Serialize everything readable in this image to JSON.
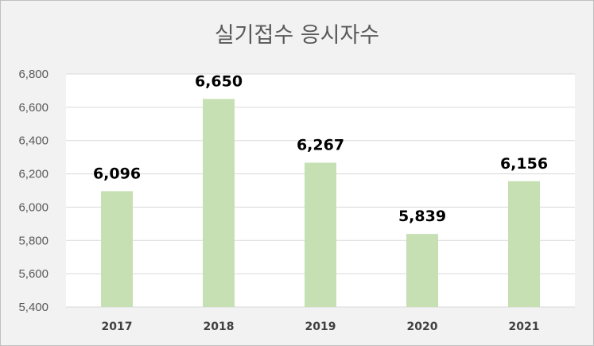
{
  "chart_data": {
    "type": "bar",
    "title": "실기접수 응시자수",
    "categories": [
      "2017",
      "2018",
      "2019",
      "2020",
      "2021"
    ],
    "values": [
      6096,
      6650,
      6267,
      5839,
      6156
    ],
    "data_labels": [
      "6,096",
      "6,650",
      "6,267",
      "5,839",
      "6,156"
    ],
    "ylim": [
      5400,
      6800
    ],
    "yticks": [
      5400,
      5600,
      5800,
      6000,
      6200,
      6400,
      6600,
      6800
    ],
    "ytick_labels": [
      "5,400",
      "5,600",
      "5,800",
      "6,000",
      "6,200",
      "6,400",
      "6,600",
      "6,800"
    ],
    "grid": true,
    "legend": "none",
    "colors": {
      "bar": "#c6e0b4",
      "plot_background": "#ffffff",
      "chart_background": "#f2f2f2",
      "gridline": "#d9d9d9"
    }
  }
}
